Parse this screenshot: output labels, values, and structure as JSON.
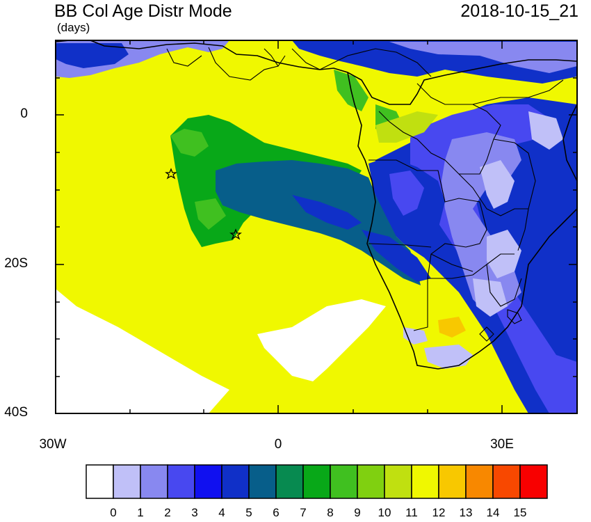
{
  "title": "BB Col Age Distr Mode",
  "units": "(days)",
  "datetime": "2018-10-15_21",
  "axes": {
    "lat_labels": [
      "0",
      "20S",
      "40S"
    ],
    "lon_labels": [
      "30W",
      "0",
      "30E"
    ]
  },
  "colorbar": {
    "labels": [
      "0",
      "1",
      "2",
      "3",
      "4",
      "5",
      "6",
      "7",
      "8",
      "9",
      "10",
      "11",
      "12",
      "13",
      "14",
      "15"
    ],
    "colors": [
      "#ffffff",
      "#c0c0f8",
      "#8888f0",
      "#4848f0",
      "#1010f0",
      "#1030c8",
      "#075e8a",
      "#078a50",
      "#08a818",
      "#40c020",
      "#80d010",
      "#c0e010",
      "#f0f800",
      "#f8c800",
      "#f88800",
      "#f84800",
      "#f80000"
    ]
  },
  "map_colors": {
    "no_data": "#ffffff",
    "day1": "#c0c0f8",
    "day2": "#8888f0",
    "day3": "#4848f0",
    "day4": "#1010f0",
    "day5": "#1030c8",
    "day6": "#075e8a",
    "day8": "#08a818",
    "day9": "#40c020",
    "day12": "#f0f800",
    "day13": "#f8c800"
  },
  "markers": [
    "star",
    "star"
  ]
}
